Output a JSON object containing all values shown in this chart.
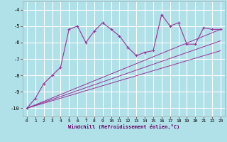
{
  "background_color": "#b0e0e8",
  "grid_color": "#ffffff",
  "line_color": "#993399",
  "marker_color": "#993399",
  "xlabel": "Windchill (Refroidissement éolien,°C)",
  "xlim": [
    -0.5,
    23.5
  ],
  "ylim": [
    -10.5,
    -3.5
  ],
  "yticks": [
    -10,
    -9,
    -8,
    -7,
    -6,
    -5,
    -4
  ],
  "xticks": [
    0,
    1,
    2,
    3,
    4,
    5,
    6,
    7,
    8,
    9,
    10,
    11,
    12,
    13,
    14,
    15,
    16,
    17,
    18,
    19,
    20,
    21,
    22,
    23
  ],
  "series1_x": [
    0,
    1,
    2,
    3,
    4,
    5,
    6,
    7,
    8,
    9,
    10,
    11,
    12,
    13,
    14,
    15,
    16,
    17,
    18,
    19,
    20,
    21,
    22,
    23
  ],
  "series1_y": [
    -10.0,
    -9.4,
    -8.5,
    -8.0,
    -7.5,
    -5.2,
    -5.0,
    -6.0,
    -5.3,
    -4.8,
    -5.2,
    -5.6,
    -6.3,
    -6.8,
    -6.6,
    -6.5,
    -4.3,
    -5.0,
    -4.8,
    -6.1,
    -6.1,
    -5.1,
    -5.2,
    -5.2
  ],
  "series2_x": [
    0,
    23
  ],
  "series2_y": [
    -10.0,
    -5.2
  ],
  "series3_x": [
    0,
    23
  ],
  "series3_y": [
    -10.0,
    -5.9
  ],
  "series4_x": [
    0,
    23
  ],
  "series4_y": [
    -10.0,
    -6.5
  ]
}
